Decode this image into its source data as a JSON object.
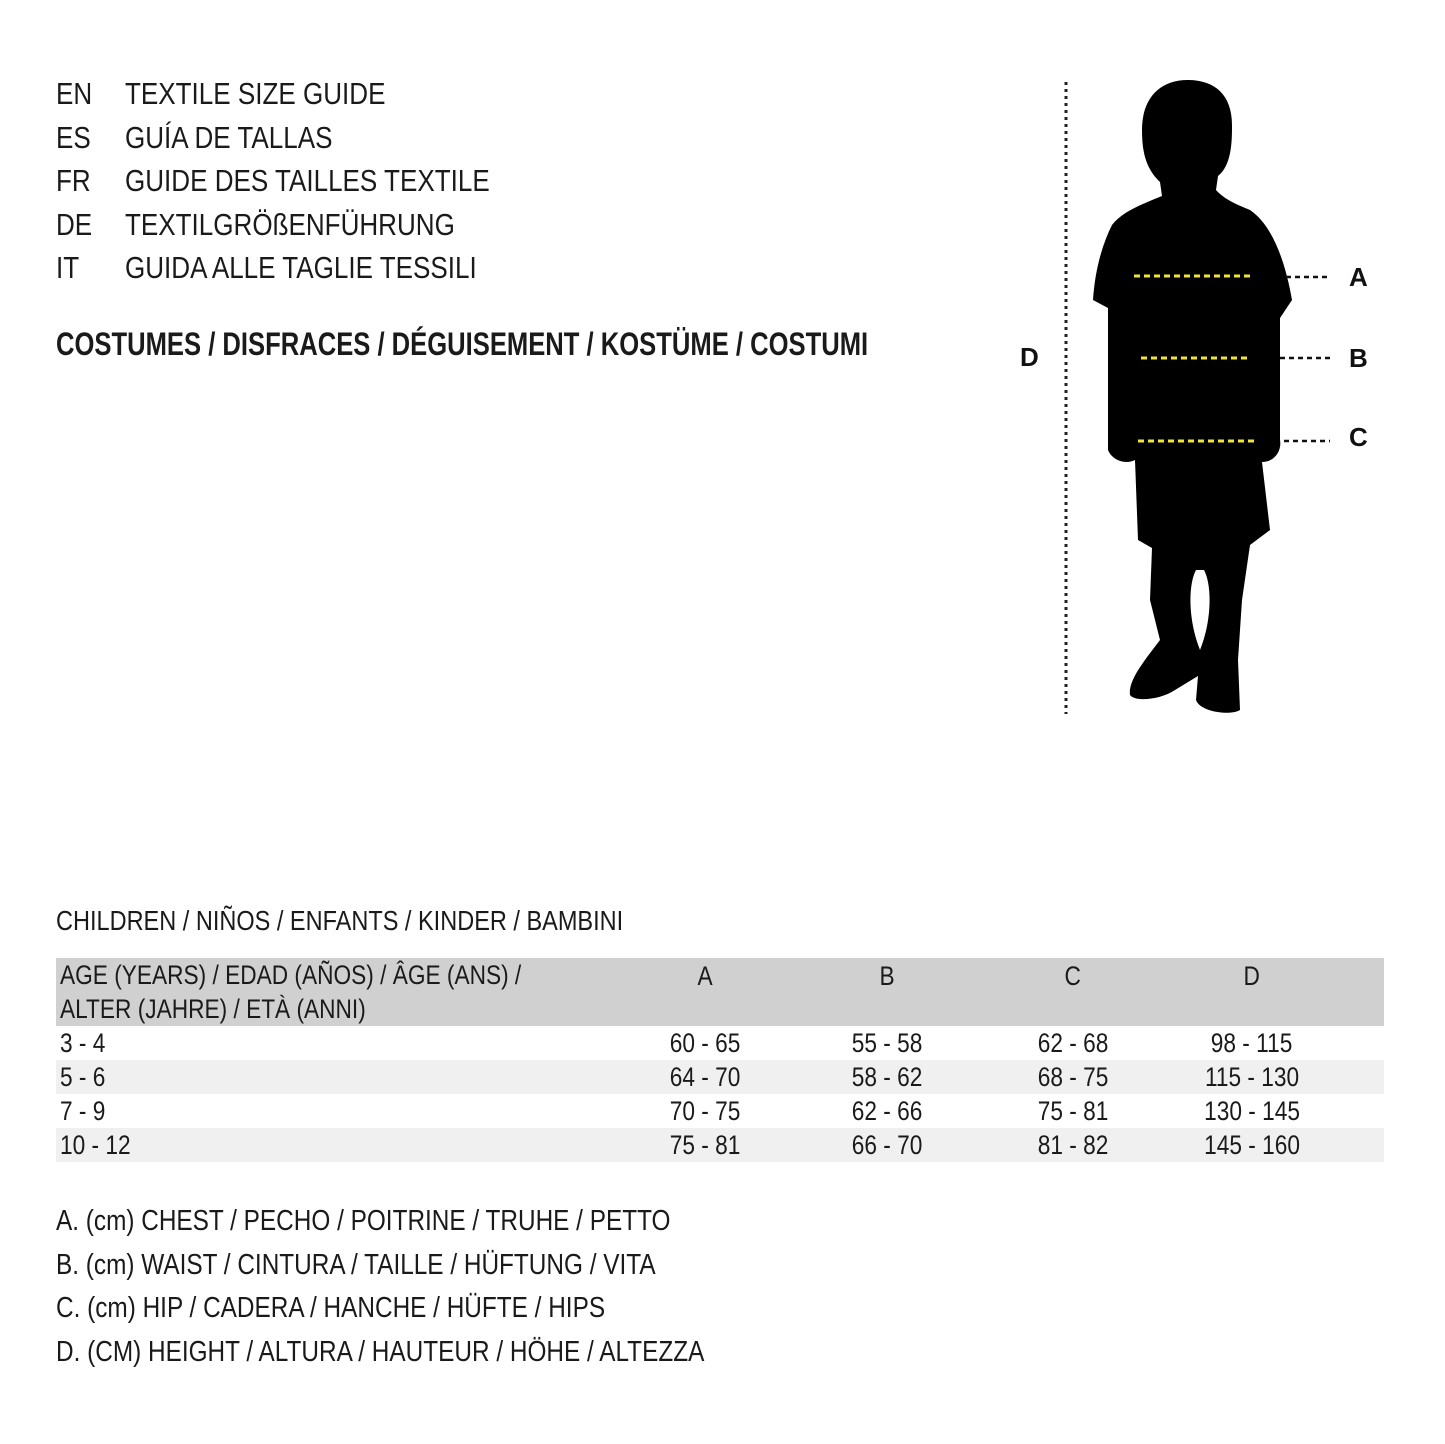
{
  "header": {
    "languages": [
      {
        "code": "EN",
        "text": "TEXTILE SIZE GUIDE"
      },
      {
        "code": "ES",
        "text": "GUÍA DE TALLAS"
      },
      {
        "code": "FR",
        "text": "GUIDE DES TAILLES TEXTILE"
      },
      {
        "code": "DE",
        "text": "TEXTILGRÖßENFÜHRUNG"
      },
      {
        "code": "IT",
        "text": "GUIDA ALLE TAGLIE TESSILI"
      }
    ],
    "category": "COSTUMES / DISFRACES / DÉGUISEMENT / KOSTÜME / COSTUMI"
  },
  "figure": {
    "labels": {
      "a": "A",
      "b": "B",
      "c": "C",
      "d": "D"
    },
    "colors": {
      "silhouette": "#000000",
      "measure_line": "#f2e33a"
    }
  },
  "table": {
    "title": "CHILDREN / NIÑOS / ENFANTS / KINDER / BAMBINI",
    "header": {
      "age_line1": "AGE (YEARS) / EDAD (AÑOS) / ÂGE (ANS) /",
      "age_line2": "ALTER (JAHRE) / ETÀ (ANNI)",
      "columns": [
        "A",
        "B",
        "C",
        "D"
      ]
    },
    "rows": [
      {
        "age": "3 - 4",
        "values": [
          "60 - 65",
          "55 - 58",
          "62 - 68",
          "98 - 115"
        ]
      },
      {
        "age": "5 - 6",
        "values": [
          "64 - 70",
          "58 - 62",
          "68 - 75",
          "115 - 130"
        ]
      },
      {
        "age": "7 - 9",
        "values": [
          "70 - 75",
          "62 - 66",
          "75 - 81",
          "130 - 145"
        ]
      },
      {
        "age": "10 - 12",
        "values": [
          "75 - 81",
          "66 - 70",
          "81 - 82",
          "145 - 160"
        ]
      }
    ],
    "colors": {
      "header_bg": "#d0d0d0",
      "stripe_bg": "#f0f0f0"
    }
  },
  "legend": [
    "A. (cm) CHEST / PECHO / POITRINE / TRUHE / PETTO",
    "B. (cm) WAIST / CINTURA / TAILLE / HÜFTUNG / VITA",
    "C. (cm) HIP / CADERA / HANCHE / HÜFTE / HIPS",
    "D. (CM) HEIGHT / ALTURA / HAUTEUR / HÖHE / ALTEZZA"
  ]
}
